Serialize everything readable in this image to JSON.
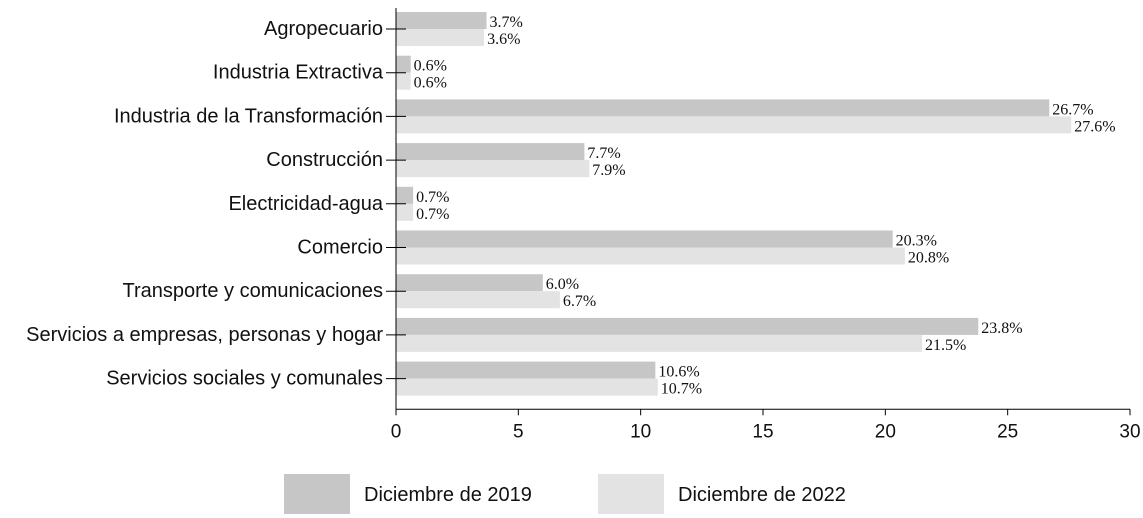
{
  "chart_data": {
    "type": "bar",
    "orientation": "horizontal",
    "categories": [
      "Agropecuario",
      "Industria Extractiva",
      "Industria de la Transformación",
      "Construcción",
      "Electricidad-agua",
      "Comercio",
      "Transporte y comunicaciones",
      "Servicios a empresas, personas y hogar",
      "Servicios sociales y comunales"
    ],
    "series": [
      {
        "name": "Diciembre de 2019",
        "color": "#c6c6c6",
        "values": [
          3.7,
          0.6,
          26.7,
          7.7,
          0.7,
          20.3,
          6.0,
          23.8,
          10.6
        ],
        "labels": [
          "3.7%",
          "0.6%",
          "26.7%",
          "7.7%",
          "0.7%",
          "20.3%",
          "6.0%",
          "23.8%",
          "10.6%"
        ]
      },
      {
        "name": "Diciembre de 2022",
        "color": "#e3e3e3",
        "values": [
          3.6,
          0.6,
          27.6,
          7.9,
          0.7,
          20.8,
          6.7,
          21.5,
          10.7
        ],
        "labels": [
          "3.6%",
          "0.6%",
          "27.6%",
          "7.9%",
          "0.7%",
          "20.8%",
          "6.7%",
          "21.5%",
          "10.7%"
        ]
      }
    ],
    "xlim": [
      0,
      30
    ],
    "xticks": [
      "0",
      "5",
      "10",
      "15",
      "20",
      "25",
      "30"
    ],
    "title": "",
    "xlabel": "",
    "ylabel": "",
    "grid": false,
    "legend_position": "bottom"
  }
}
